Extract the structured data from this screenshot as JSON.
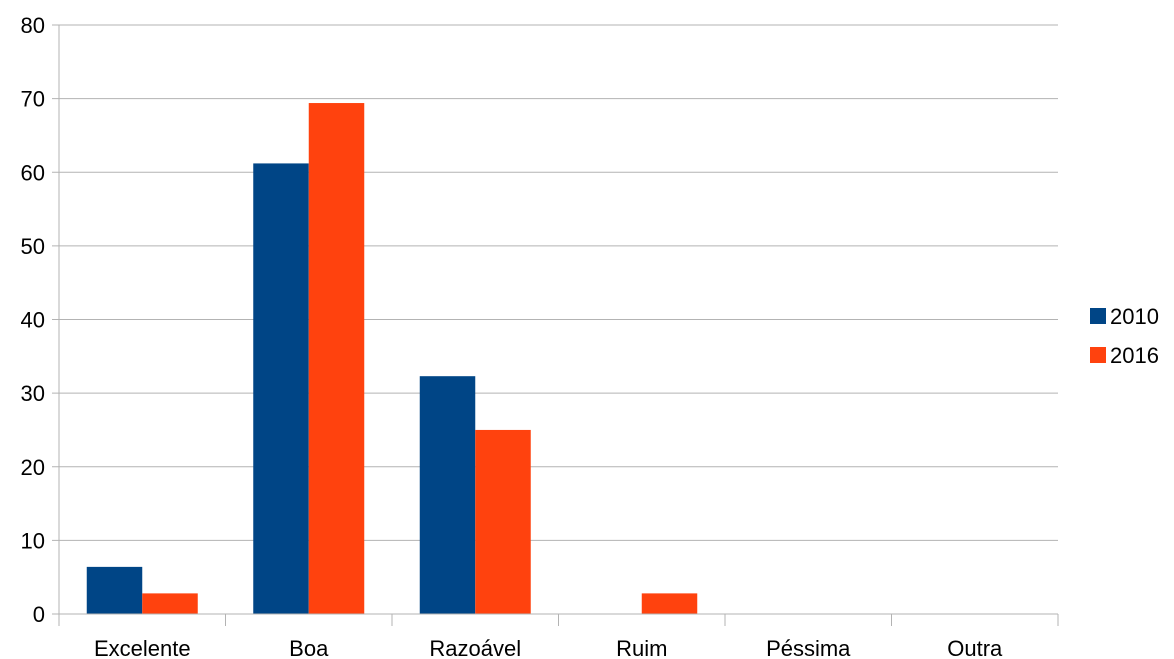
{
  "chart_data": {
    "type": "bar",
    "categories": [
      "Excelente",
      "Boa",
      "Razoável",
      "Ruim",
      "Péssima",
      "Outra"
    ],
    "series": [
      {
        "name": "2010",
        "values": [
          6.4,
          61.2,
          32.3,
          0,
          0,
          0
        ],
        "color": "#004586"
      },
      {
        "name": "2016",
        "values": [
          2.8,
          69.4,
          25.0,
          2.8,
          0,
          0
        ],
        "color": "#ff420e"
      }
    ],
    "ylim": [
      0,
      80
    ],
    "yticks": [
      0,
      10,
      20,
      30,
      40,
      50,
      60,
      70,
      80
    ],
    "grid": true,
    "legend_position": "right",
    "gridline_color": "#b3b3b3",
    "axis_color": "#b3b3b3",
    "title": "",
    "xlabel": "",
    "ylabel": ""
  }
}
